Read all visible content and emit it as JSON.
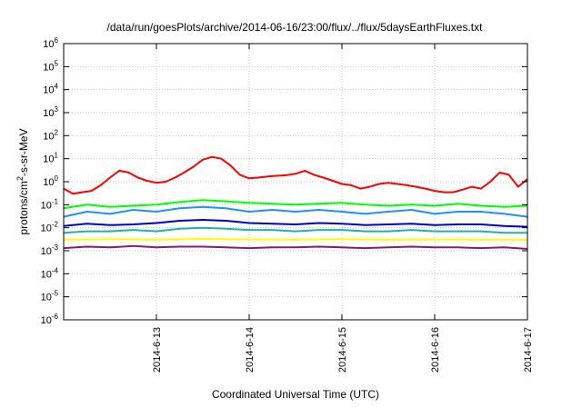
{
  "chart_data": {
    "type": "line",
    "title": "/data/run/goesPlots/archive/2014-06-16/23:00/flux/../flux/5daysEarthFluxes.txt",
    "xlabel": "Coordinated Universal Time (UTC)",
    "ylabel": {
      "base": "protons/cm",
      "sup": "2",
      "rest": "-s-sr-MeV"
    },
    "x_range_days": [
      0,
      5
    ],
    "x_ticks": [
      {
        "day": 1,
        "label": "2014-6-13"
      },
      {
        "day": 2,
        "label": "2014-6-14"
      },
      {
        "day": 3,
        "label": "2014-6-15"
      },
      {
        "day": 4,
        "label": "2014-6-16"
      },
      {
        "day": 5,
        "label": "2014-6-17"
      }
    ],
    "y_scale": "log",
    "y_ticks": [
      {
        "exp": 6,
        "base": "10",
        "sup": "6"
      },
      {
        "exp": 5,
        "base": "10",
        "sup": "5"
      },
      {
        "exp": 4,
        "base": "10",
        "sup": "4"
      },
      {
        "exp": 3,
        "base": "10",
        "sup": "3"
      },
      {
        "exp": 2,
        "base": "10",
        "sup": "2"
      },
      {
        "exp": 1,
        "base": "10",
        "sup": "1"
      },
      {
        "exp": 0,
        "base": "10",
        "sup": "0"
      },
      {
        "exp": -1,
        "base": "10",
        "sup": "-1"
      },
      {
        "exp": -2,
        "base": "10",
        "sup": "-2"
      },
      {
        "exp": -3,
        "base": "10",
        "sup": "-3"
      },
      {
        "exp": -4,
        "base": "10",
        "sup": "-4"
      },
      {
        "exp": -5,
        "base": "10",
        "sup": "-5"
      },
      {
        "exp": -6,
        "base": "10",
        "sup": "-6"
      }
    ],
    "grid": true,
    "series": [
      {
        "color": "#ff0000",
        "x": [
          0,
          0.1,
          0.2,
          0.3,
          0.4,
          0.5,
          0.6,
          0.7,
          0.8,
          0.9,
          1,
          1.1,
          1.2,
          1.3,
          1.4,
          1.5,
          1.6,
          1.7,
          1.8,
          1.9,
          2,
          2.1,
          2.2,
          2.3,
          2.4,
          2.5,
          2.6,
          2.7,
          2.8,
          2.9,
          3,
          3.1,
          3.2,
          3.3,
          3.4,
          3.5,
          3.6,
          3.7,
          3.8,
          3.9,
          4,
          4.1,
          4.2,
          4.3,
          4.4,
          4.5,
          4.6,
          4.7,
          4.8,
          4.9,
          5
        ],
        "y": [
          0.5,
          0.3,
          0.35,
          0.4,
          0.7,
          1.5,
          3,
          2.5,
          1.5,
          1.1,
          0.9,
          1,
          1.5,
          2.5,
          4.5,
          9,
          12,
          10,
          5,
          2,
          1.4,
          1.5,
          1.7,
          1.8,
          1.9,
          2.2,
          3,
          2,
          1.5,
          1.1,
          0.8,
          0.7,
          0.5,
          0.6,
          0.8,
          0.9,
          0.8,
          0.7,
          0.6,
          0.5,
          0.4,
          0.35,
          0.35,
          0.45,
          0.6,
          0.5,
          1,
          2.5,
          2,
          0.6,
          1.3
        ]
      },
      {
        "color": "#00ff00",
        "x": [
          0,
          0.25,
          0.5,
          0.75,
          1,
          1.25,
          1.5,
          1.75,
          2,
          2.25,
          2.5,
          2.75,
          3,
          3.25,
          3.5,
          3.75,
          4,
          4.25,
          4.5,
          4.75,
          5
        ],
        "y": [
          0.07,
          0.1,
          0.08,
          0.09,
          0.1,
          0.13,
          0.16,
          0.14,
          0.12,
          0.11,
          0.1,
          0.11,
          0.12,
          0.1,
          0.09,
          0.1,
          0.09,
          0.11,
          0.09,
          0.08,
          0.09
        ]
      },
      {
        "color": "#1e90ff",
        "x": [
          0,
          0.25,
          0.5,
          0.75,
          1,
          1.25,
          1.5,
          1.75,
          2,
          2.25,
          2.5,
          2.75,
          3,
          3.25,
          3.5,
          3.75,
          4,
          4.25,
          4.5,
          4.75,
          5
        ],
        "y": [
          0.03,
          0.05,
          0.04,
          0.06,
          0.05,
          0.07,
          0.08,
          0.07,
          0.05,
          0.06,
          0.05,
          0.06,
          0.05,
          0.04,
          0.05,
          0.06,
          0.04,
          0.05,
          0.05,
          0.04,
          0.03
        ]
      },
      {
        "color": "#0000cd",
        "x": [
          0,
          0.25,
          0.5,
          0.75,
          1,
          1.25,
          1.5,
          1.75,
          2,
          2.25,
          2.5,
          2.75,
          3,
          3.25,
          3.5,
          3.75,
          4,
          4.25,
          4.5,
          4.75,
          5
        ],
        "y": [
          0.012,
          0.015,
          0.013,
          0.014,
          0.016,
          0.02,
          0.022,
          0.02,
          0.016,
          0.015,
          0.014,
          0.016,
          0.015,
          0.013,
          0.014,
          0.015,
          0.013,
          0.014,
          0.014,
          0.012,
          0.011
        ]
      },
      {
        "color": "#20b2aa",
        "x": [
          0,
          0.25,
          0.5,
          0.75,
          1,
          1.25,
          1.5,
          1.75,
          2,
          2.25,
          2.5,
          2.75,
          3,
          3.25,
          3.5,
          3.75,
          4,
          4.25,
          4.5,
          4.75,
          5
        ],
        "y": [
          0.006,
          0.007,
          0.007,
          0.008,
          0.007,
          0.009,
          0.01,
          0.009,
          0.008,
          0.008,
          0.007,
          0.008,
          0.008,
          0.007,
          0.007,
          0.008,
          0.007,
          0.007,
          0.007,
          0.006,
          0.006
        ]
      },
      {
        "color": "#ffff00",
        "x": [
          0,
          0.5,
          1,
          1.5,
          2,
          2.5,
          3,
          3.5,
          4,
          4.5,
          5
        ],
        "y": [
          0.003,
          0.0032,
          0.003,
          0.0033,
          0.0031,
          0.003,
          0.0032,
          0.003,
          0.0031,
          0.003,
          0.003
        ]
      },
      {
        "color": "#8b1a6b",
        "x": [
          0,
          0.25,
          0.5,
          0.75,
          1,
          1.25,
          1.5,
          1.75,
          2,
          2.25,
          2.5,
          2.75,
          3,
          3.25,
          3.5,
          3.75,
          4,
          4.25,
          4.5,
          4.75,
          5
        ],
        "y": [
          0.0013,
          0.0015,
          0.0014,
          0.0016,
          0.0014,
          0.0015,
          0.0015,
          0.0014,
          0.0013,
          0.0014,
          0.0014,
          0.0015,
          0.0014,
          0.0013,
          0.0014,
          0.0015,
          0.0014,
          0.0014,
          0.0013,
          0.0014,
          0.0012
        ]
      }
    ]
  }
}
